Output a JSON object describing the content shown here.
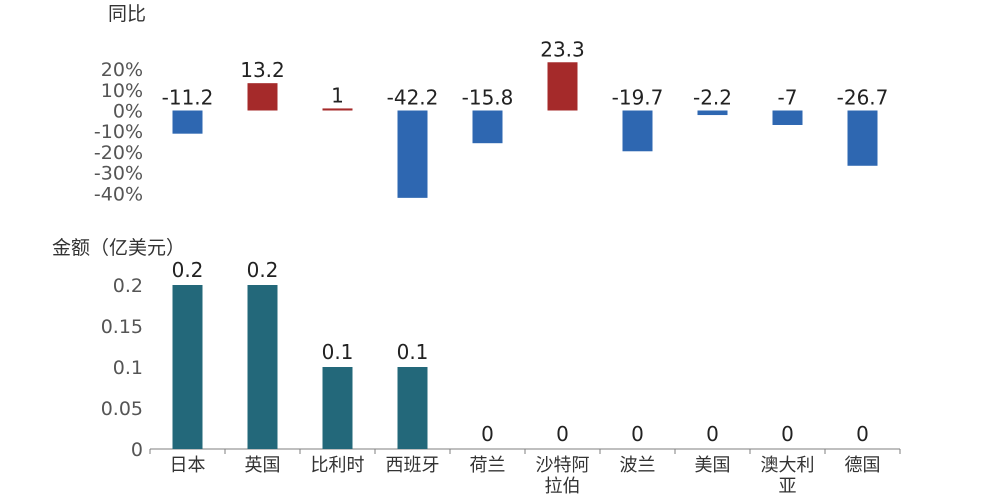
{
  "colors": {
    "positive": "#A52A2A",
    "negative": "#2E67B1",
    "amount": "#23687A",
    "axis": "#7F7F7F"
  },
  "chart_data": [
    {
      "type": "bar",
      "ylabel": "同比",
      "categories": [
        "日本",
        "英国",
        "比利时",
        "西班牙",
        "荷兰",
        "沙特阿拉伯",
        "波兰",
        "美国",
        "澳大利亚",
        "德国"
      ],
      "values": [
        -11.2,
        13.2,
        1,
        -42.2,
        -15.8,
        23.3,
        -19.7,
        -2.2,
        -7,
        -26.7
      ],
      "data_labels": [
        "-11.2",
        "13.2",
        "1",
        "-42.2",
        "-15.8",
        "23.3",
        "-19.7",
        "-2.2",
        "-7",
        "-26.7"
      ],
      "ylim": [
        -40,
        20
      ],
      "yticks": [
        "20%",
        "10%",
        "0%",
        "-10%",
        "-20%",
        "-30%",
        "-40%"
      ],
      "grid": false
    },
    {
      "type": "bar",
      "ylabel": "金额（亿美元）",
      "categories": [
        "日本",
        "英国",
        "比利时",
        "西班牙",
        "荷兰",
        "沙特阿拉伯",
        "波兰",
        "美国",
        "澳大利亚",
        "德国"
      ],
      "category_lines": [
        [
          "日本"
        ],
        [
          "英国"
        ],
        [
          "比利时"
        ],
        [
          "西班牙"
        ],
        [
          "荷兰"
        ],
        [
          "沙特阿",
          "拉伯"
        ],
        [
          "波兰"
        ],
        [
          "美国"
        ],
        [
          "澳大利",
          "亚"
        ],
        [
          "德国"
        ]
      ],
      "values": [
        0.2,
        0.2,
        0.1,
        0.1,
        0,
        0,
        0,
        0,
        0,
        0
      ],
      "data_labels": [
        "0.2",
        "0.2",
        "0.1",
        "0.1",
        "0",
        "0",
        "0",
        "0",
        "0",
        "0"
      ],
      "ylim": [
        0,
        0.2
      ],
      "yticks": [
        "0.2",
        "0.15",
        "0.1",
        "0.05",
        "0"
      ],
      "grid": false
    }
  ]
}
